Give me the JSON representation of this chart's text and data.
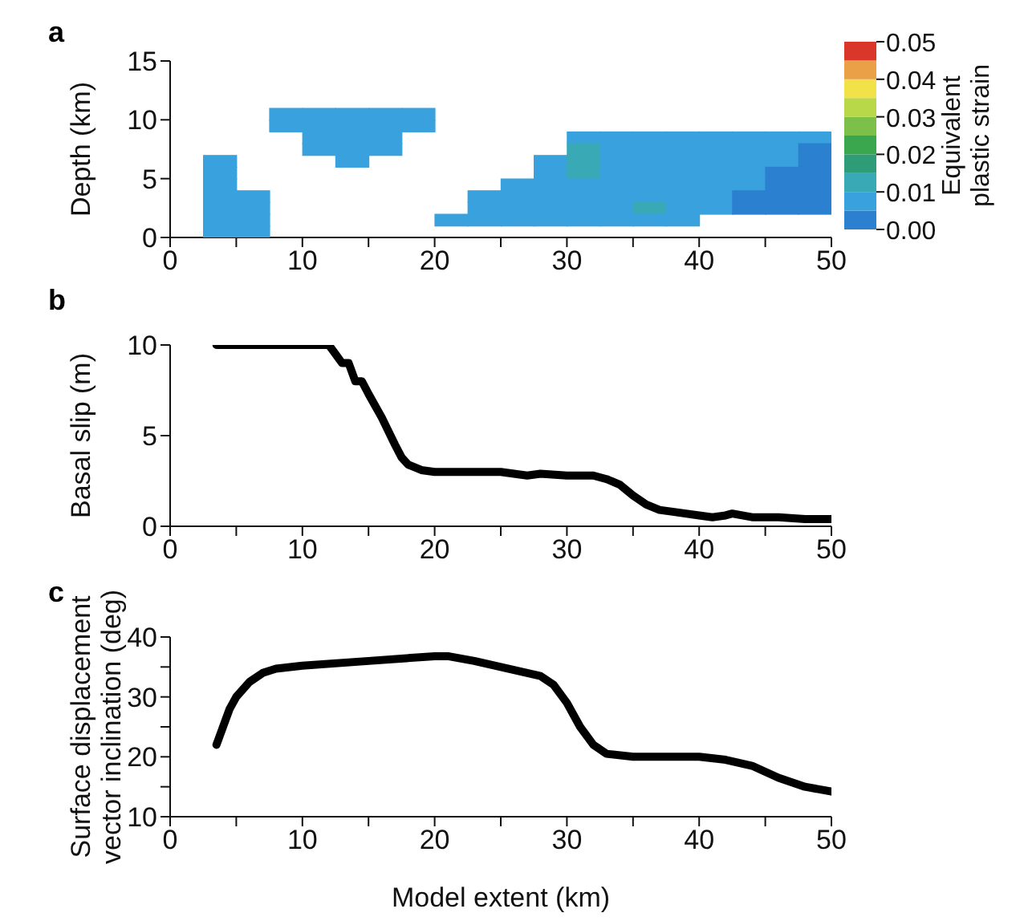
{
  "chart_data": [
    {
      "type": "scatter",
      "title": "a",
      "ylabel": "Depth (km)",
      "clabel": "Equivalent plastic strain",
      "marker": "square",
      "xlim": [
        0,
        50
      ],
      "xticks": [
        0,
        {
          "value": 5,
          "label": null
        },
        10,
        {
          "value": 15,
          "label": null
        },
        20,
        {
          "value": 25,
          "label": null
        },
        30,
        {
          "value": 35,
          "label": null
        },
        40,
        {
          "value": 45,
          "label": null
        },
        50
      ],
      "ylim": [
        0,
        15
      ],
      "yticks": [
        0,
        5,
        10,
        15
      ],
      "clim": [
        0,
        0.05
      ],
      "cticks": [
        {
          "value": 0,
          "label": "0.00"
        },
        {
          "value": 0.01,
          "label": "0.01"
        },
        {
          "value": 0.02,
          "label": "0.02"
        },
        {
          "value": 0.03,
          "label": "0.03"
        },
        {
          "value": 0.04,
          "label": "0.04"
        },
        {
          "value": 0.05,
          "label": "0.05"
        }
      ],
      "x": [
        8.75,
        11.25,
        13.75,
        16.25,
        18.75,
        8.75,
        11.25,
        13.75,
        16.25,
        18.75,
        11.25,
        13.75,
        16.25,
        31.25,
        33.75,
        36.25,
        38.75,
        41.25,
        43.75,
        46.25,
        48.75,
        11.25,
        13.75,
        16.25,
        31.25,
        33.75,
        36.25,
        38.75,
        41.25,
        43.75,
        46.25,
        48.75,
        3.75,
        13.75,
        28.75,
        31.25,
        33.75,
        36.25,
        38.75,
        41.25,
        43.75,
        46.25,
        48.75,
        3.75,
        28.75,
        31.25,
        33.75,
        36.25,
        38.75,
        41.25,
        43.75,
        46.25,
        48.75,
        3.75,
        26.25,
        28.75,
        31.25,
        33.75,
        36.25,
        38.75,
        41.25,
        43.75,
        46.25,
        48.75,
        3.75,
        6.25,
        23.75,
        26.25,
        28.75,
        31.25,
        33.75,
        36.25,
        38.75,
        41.25,
        43.75,
        46.25,
        48.75,
        3.75,
        6.25,
        23.75,
        26.25,
        28.75,
        31.25,
        33.75,
        36.25,
        38.75,
        41.25,
        43.75,
        46.25,
        48.75,
        3.75,
        6.25,
        21.25,
        23.75,
        26.25,
        28.75,
        31.25,
        33.75,
        36.25,
        38.75,
        3.75,
        6.25
      ],
      "values": [
        10.5,
        10.5,
        10.5,
        10.5,
        10.5,
        9.5,
        9.5,
        9.5,
        9.5,
        9.5,
        8.5,
        8.5,
        8.5,
        8.5,
        8.5,
        8.5,
        8.5,
        8.5,
        8.5,
        8.5,
        8.5,
        7.5,
        7.5,
        7.5,
        7.5,
        7.5,
        7.5,
        7.5,
        7.5,
        7.5,
        7.5,
        7.5,
        6.5,
        6.5,
        6.5,
        6.5,
        6.5,
        6.5,
        6.5,
        6.5,
        6.5,
        6.5,
        6.5,
        5.5,
        5.5,
        5.5,
        5.5,
        5.5,
        5.5,
        5.5,
        5.5,
        5.5,
        5.5,
        4.5,
        4.5,
        4.5,
        4.5,
        4.5,
        4.5,
        4.5,
        4.5,
        4.5,
        4.5,
        4.5,
        3.5,
        3.5,
        3.5,
        3.5,
        3.5,
        3.5,
        3.5,
        3.5,
        3.5,
        3.5,
        3.5,
        3.5,
        3.5,
        2.5,
        2.5,
        2.5,
        2.5,
        2.5,
        2.5,
        2.5,
        2.5,
        2.5,
        2.5,
        2.5,
        2.5,
        2.5,
        1.5,
        1.5,
        1.5,
        1.5,
        1.5,
        1.5,
        1.5,
        1.5,
        1.5,
        1.5,
        0.5,
        0.5
      ],
      "cvalues": [
        0.0075,
        0.0075,
        0.0075,
        0.0075,
        0.0075,
        0.0075,
        0.0075,
        0.0075,
        0.0075,
        0.0075,
        0.0075,
        0.0075,
        0.0075,
        0.0075,
        0.0075,
        0.0075,
        0.0075,
        0.0075,
        0.0075,
        0.0075,
        0.0075,
        0.0075,
        0.0075,
        0.0075,
        0.0125,
        0.0075,
        0.0075,
        0.0075,
        0.0075,
        0.0075,
        0.0075,
        0.0025,
        0.0075,
        0.0075,
        0.0075,
        0.0125,
        0.0075,
        0.0075,
        0.0075,
        0.0075,
        0.0075,
        0.0075,
        0.0025,
        0.0075,
        0.0075,
        0.0125,
        0.0075,
        0.0075,
        0.0075,
        0.0075,
        0.0075,
        0.0025,
        0.0025,
        0.0075,
        0.0075,
        0.0075,
        0.0075,
        0.0075,
        0.0075,
        0.0075,
        0.0075,
        0.0075,
        0.0025,
        0.0025,
        0.0075,
        0.0075,
        0.0075,
        0.0075,
        0.0075,
        0.0075,
        0.0075,
        0.0075,
        0.0075,
        0.0075,
        0.0025,
        0.0025,
        0.0025,
        0.0075,
        0.0075,
        0.0075,
        0.0075,
        0.0075,
        0.0075,
        0.0075,
        0.0125,
        0.0075,
        0.0075,
        0.0025,
        0.0025,
        0.0025,
        0.0075,
        0.0075,
        0.0075,
        0.0075,
        0.0075,
        0.0075,
        0.0075,
        0.0075,
        0.0075,
        0.0075,
        0.0075,
        0.0075
      ]
    },
    {
      "type": "line",
      "title": "b",
      "ylabel": "Basal slip (m)",
      "xlim": [
        0,
        50
      ],
      "xticks": [
        0,
        {
          "value": 5,
          "label": null
        },
        10,
        {
          "value": 15,
          "label": null
        },
        20,
        {
          "value": 25,
          "label": null
        },
        30,
        {
          "value": 35,
          "label": null
        },
        40,
        {
          "value": 45,
          "label": null
        },
        50
      ],
      "ylim": [
        0,
        10
      ],
      "yticks": [
        0,
        5,
        10
      ],
      "series": [
        {
          "color": "#000000",
          "x": [
            3.5,
            12,
            12.5,
            13,
            13.5,
            14,
            14.5,
            15,
            16,
            17,
            17.5,
            18,
            19,
            20,
            25,
            27,
            28,
            30,
            32,
            33,
            34,
            35,
            36,
            37,
            38,
            40,
            41,
            42,
            42.5,
            44,
            46,
            48,
            50
          ],
          "values": [
            10,
            10,
            9.5,
            9,
            9,
            8,
            8,
            7.3,
            6,
            4.5,
            3.8,
            3.4,
            3.1,
            3,
            3,
            2.8,
            2.9,
            2.8,
            2.8,
            2.6,
            2.3,
            1.7,
            1.2,
            0.9,
            0.8,
            0.6,
            0.5,
            0.6,
            0.7,
            0.5,
            0.5,
            0.4,
            0.4
          ]
        }
      ]
    },
    {
      "type": "line",
      "title": "c",
      "ylabel": "Surface displacement vector inclination (deg)",
      "xlabel": "Model extent (km)",
      "xlim": [
        0,
        50
      ],
      "xticks": [
        0,
        {
          "value": 5,
          "label": null
        },
        10,
        {
          "value": 15,
          "label": null
        },
        20,
        {
          "value": 25,
          "label": null
        },
        30,
        {
          "value": 35,
          "label": null
        },
        40,
        {
          "value": 45,
          "label": null
        },
        50
      ],
      "ylim": [
        10,
        40
      ],
      "yticks": [
        10,
        {
          "value": 15,
          "label": null
        },
        20,
        {
          "value": 25,
          "label": null
        },
        30,
        {
          "value": 35,
          "label": null
        },
        40
      ],
      "series": [
        {
          "color": "#000000",
          "x": [
            3.5,
            4,
            4.5,
            5,
            6,
            7,
            8,
            10,
            15,
            20,
            21,
            23,
            25,
            28,
            29,
            30,
            31,
            32,
            33,
            35,
            40,
            42,
            44,
            46,
            48,
            50
          ],
          "values": [
            22,
            25,
            28,
            30,
            32.5,
            34,
            34.7,
            35.2,
            36,
            36.8,
            36.8,
            36,
            35,
            33.5,
            32,
            29,
            25,
            22,
            20.5,
            20,
            20,
            19.5,
            18.5,
            16.5,
            15,
            14.2
          ]
        }
      ]
    }
  ]
}
